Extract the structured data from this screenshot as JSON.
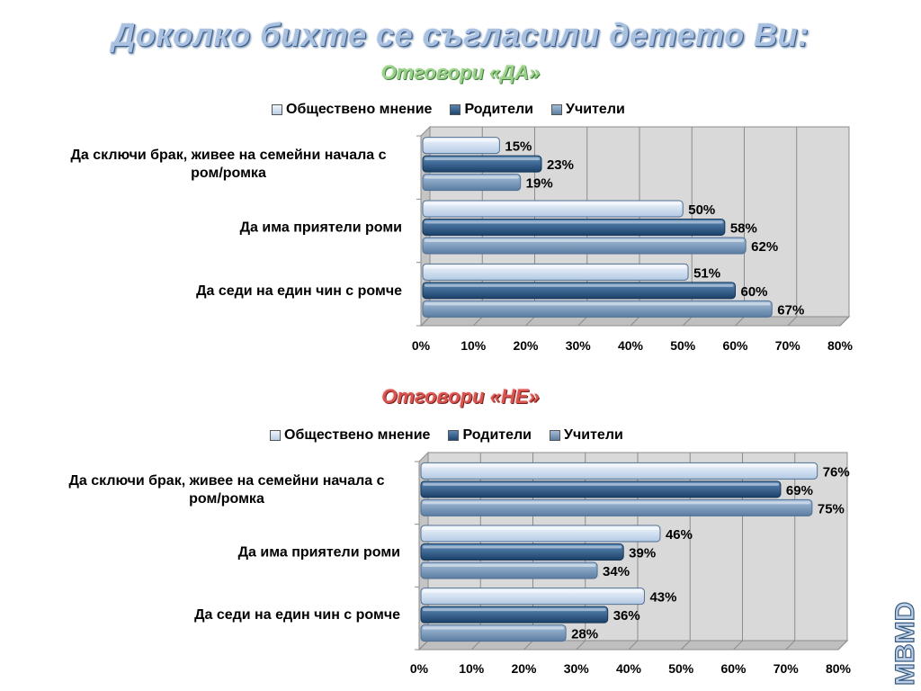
{
  "title": "Доколко бихте се съгласили детето Ви:",
  "chart_data": [
    {
      "type": "bar",
      "title": "Отговори «ДА»",
      "categories": [
        "Да сключи брак, живее на семейни начала с ром/ромка",
        "Да има приятели роми",
        "Да седи на един чин с ромче"
      ],
      "series": [
        {
          "name": "Обществено мнение",
          "values": [
            15,
            50,
            51
          ]
        },
        {
          "name": "Родители",
          "values": [
            23,
            58,
            60
          ]
        },
        {
          "name": "Учители",
          "values": [
            19,
            62,
            67
          ]
        }
      ],
      "xlim": [
        0,
        80
      ],
      "ticks": [
        "0%",
        "10%",
        "20%",
        "30%",
        "40%",
        "50%",
        "60%",
        "70%",
        "80%"
      ],
      "legend": "top",
      "grid": true
    },
    {
      "type": "bar",
      "title": "Отговори «НЕ»",
      "categories": [
        "Да сключи брак, живее на семейни начала с ром/ромка",
        "Да има приятели роми",
        "Да седи на един чин с ромче"
      ],
      "series": [
        {
          "name": "Обществено мнение",
          "values": [
            76,
            46,
            43
          ]
        },
        {
          "name": "Родители",
          "values": [
            69,
            39,
            36
          ]
        },
        {
          "name": "Учители",
          "values": [
            75,
            34,
            28
          ]
        }
      ],
      "xlim": [
        0,
        80
      ],
      "ticks": [
        "0%",
        "10%",
        "20%",
        "30%",
        "40%",
        "50%",
        "60%",
        "70%",
        "80%"
      ],
      "legend": "top",
      "grid": true
    }
  ],
  "watermark": "MBMD",
  "colors": {
    "series_0": "#c9d9ee",
    "series_1": "#2d5783",
    "series_2": "#7c98b8",
    "title": "#a9c0df",
    "yes": "#9bd08a",
    "no": "#d9534f"
  }
}
